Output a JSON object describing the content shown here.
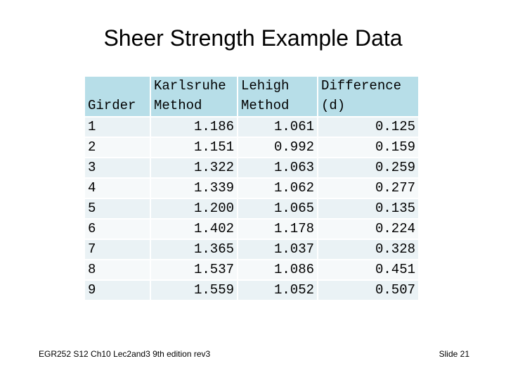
{
  "slide": {
    "title": "Sheer Strength Example Data",
    "footer_left": "EGR252 S12 Ch10  Lec2and3 9th edition rev3",
    "footer_right": "Slide 21"
  },
  "table": {
    "headers": [
      [
        "",
        "Girder"
      ],
      [
        "Karlsruhe",
        "Method"
      ],
      [
        "Lehigh",
        "Method"
      ],
      [
        "Difference",
        "(d)"
      ]
    ],
    "rows": [
      [
        "1",
        "1.186",
        "1.061",
        "0.125"
      ],
      [
        "2",
        "1.151",
        "0.992",
        "0.159"
      ],
      [
        "3",
        "1.322",
        "1.063",
        "0.259"
      ],
      [
        "4",
        "1.339",
        "1.062",
        "0.277"
      ],
      [
        "5",
        "1.200",
        "1.065",
        "0.135"
      ],
      [
        "6",
        "1.402",
        "1.178",
        "0.224"
      ],
      [
        "7",
        "1.365",
        "1.037",
        "0.328"
      ],
      [
        "8",
        "1.537",
        "1.086",
        "0.451"
      ],
      [
        "9",
        "1.559",
        "1.052",
        "0.507"
      ]
    ]
  },
  "colors": {
    "header_bg": "#b7dee8",
    "row_odd_bg": "#eaf2f5",
    "row_even_bg": "#f6f9fa"
  }
}
